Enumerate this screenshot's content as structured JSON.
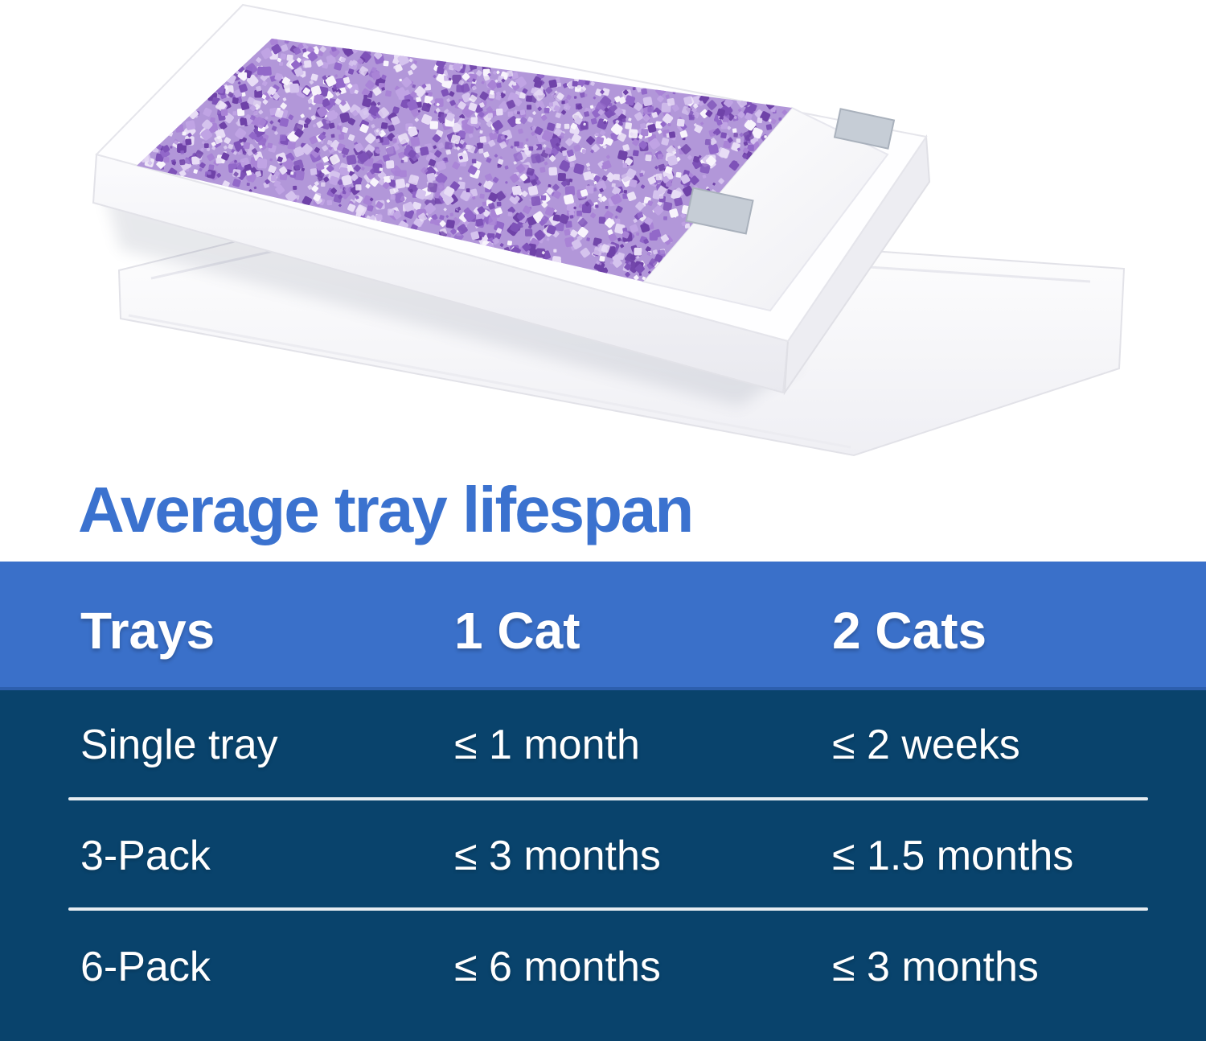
{
  "title": {
    "text": "Average tray lifespan"
  },
  "table": {
    "columns": [
      "Trays",
      "1 Cat",
      "2 Cats"
    ],
    "rows": [
      [
        "Single tray",
        "≤ 1 month",
        "≤ 2 weeks"
      ],
      [
        "3-Pack",
        "≤ 3 months",
        "≤ 1.5 months"
      ],
      [
        "6-Pack",
        "≤ 6 months",
        "≤ 3 months"
      ]
    ]
  },
  "colors": {
    "title_color": "#3b72cf",
    "header_bg": "#3a70c9",
    "header_edge": "#2d5fae",
    "body_bg": "#09436c",
    "divider": "#e6ecf1",
    "table_text": "#ffffff"
  },
  "photo": {
    "description": "Open white cardboard litter tray filled with purple crystal litter, tilted on top of its white box lid; right portion of tray covered by a white sheet held with two silver tape tabs",
    "box_color": "#fdfdfe",
    "litter_base": "#b297d9",
    "litter_palette": [
      "#6f42a8",
      "#7e52b8",
      "#9268c9",
      "#a983d6",
      "#c0a4e4",
      "#d5c3ee",
      "#e8ddf6",
      "#f8f4fc"
    ],
    "tape_color": "#c6cdd6"
  },
  "chart_data": {
    "type": "table",
    "title": "Average tray lifespan",
    "columns": [
      "Trays",
      "1 Cat",
      "2 Cats"
    ],
    "rows": [
      [
        "Single tray",
        "≤ 1 month",
        "≤ 2 weeks"
      ],
      [
        "3-Pack",
        "≤ 3 months",
        "≤ 1.5 months"
      ],
      [
        "6-Pack",
        "≤ 6 months",
        "≤ 3 months"
      ]
    ]
  }
}
